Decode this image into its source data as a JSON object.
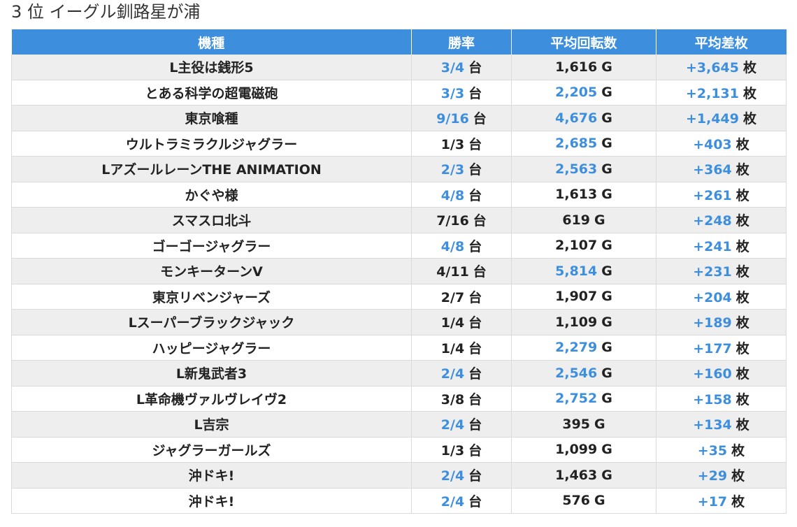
{
  "title": "3 位 イーグル釧路星が浦",
  "table": {
    "headers": [
      "機種",
      "勝率",
      "平均回転数",
      "平均差枚"
    ],
    "rate_unit": "台",
    "spin_unit": "G",
    "diff_unit": "枚",
    "link_color": "#3d8fde",
    "header_color": "#3d8fde",
    "rows": [
      {
        "machine": "L主役は銭形5",
        "win_rate": "3/4",
        "win_link": true,
        "spins": "1,616",
        "spins_link": false,
        "diff": "+3,645"
      },
      {
        "machine": "とある科学の超電磁砲",
        "win_rate": "3/3",
        "win_link": true,
        "spins": "2,205",
        "spins_link": true,
        "diff": "+2,131"
      },
      {
        "machine": "東京喰種",
        "win_rate": "9/16",
        "win_link": true,
        "spins": "4,676",
        "spins_link": true,
        "diff": "+1,449"
      },
      {
        "machine": "ウルトラミラクルジャグラー",
        "win_rate": "1/3",
        "win_link": false,
        "spins": "2,685",
        "spins_link": true,
        "diff": "+403"
      },
      {
        "machine": "LアズールレーンTHE ANIMATION",
        "win_rate": "2/3",
        "win_link": true,
        "spins": "2,563",
        "spins_link": true,
        "diff": "+364"
      },
      {
        "machine": "かぐや様",
        "win_rate": "4/8",
        "win_link": true,
        "spins": "1,613",
        "spins_link": false,
        "diff": "+261"
      },
      {
        "machine": "スマスロ北斗",
        "win_rate": "7/16",
        "win_link": false,
        "spins": "619",
        "spins_link": false,
        "diff": "+248"
      },
      {
        "machine": "ゴーゴージャグラー",
        "win_rate": "4/8",
        "win_link": true,
        "spins": "2,107",
        "spins_link": false,
        "diff": "+241"
      },
      {
        "machine": "モンキーターンV",
        "win_rate": "4/11",
        "win_link": false,
        "spins": "5,814",
        "spins_link": true,
        "diff": "+231"
      },
      {
        "machine": "東京リベンジャーズ",
        "win_rate": "2/7",
        "win_link": false,
        "spins": "1,907",
        "spins_link": false,
        "diff": "+204"
      },
      {
        "machine": "Lスーパーブラックジャック",
        "win_rate": "1/4",
        "win_link": false,
        "spins": "1,109",
        "spins_link": false,
        "diff": "+189"
      },
      {
        "machine": "ハッピージャグラー",
        "win_rate": "1/4",
        "win_link": false,
        "spins": "2,279",
        "spins_link": true,
        "diff": "+177"
      },
      {
        "machine": "L新鬼武者3",
        "win_rate": "2/4",
        "win_link": true,
        "spins": "2,546",
        "spins_link": true,
        "diff": "+160"
      },
      {
        "machine": "L革命機ヴァルヴレイヴ2",
        "win_rate": "3/8",
        "win_link": false,
        "spins": "2,752",
        "spins_link": true,
        "diff": "+158"
      },
      {
        "machine": "L吉宗",
        "win_rate": "2/4",
        "win_link": true,
        "spins": "395",
        "spins_link": false,
        "diff": "+134"
      },
      {
        "machine": "ジャグラーガールズ",
        "win_rate": "1/3",
        "win_link": false,
        "spins": "1,099",
        "spins_link": false,
        "diff": "+35"
      },
      {
        "machine": "沖ドキ!",
        "win_rate": "2/4",
        "win_link": true,
        "spins": "1,463",
        "spins_link": false,
        "diff": "+29"
      },
      {
        "machine": "沖ドキ!",
        "win_rate": "2/4",
        "win_link": true,
        "spins": "576",
        "spins_link": false,
        "diff": "+17"
      }
    ]
  }
}
